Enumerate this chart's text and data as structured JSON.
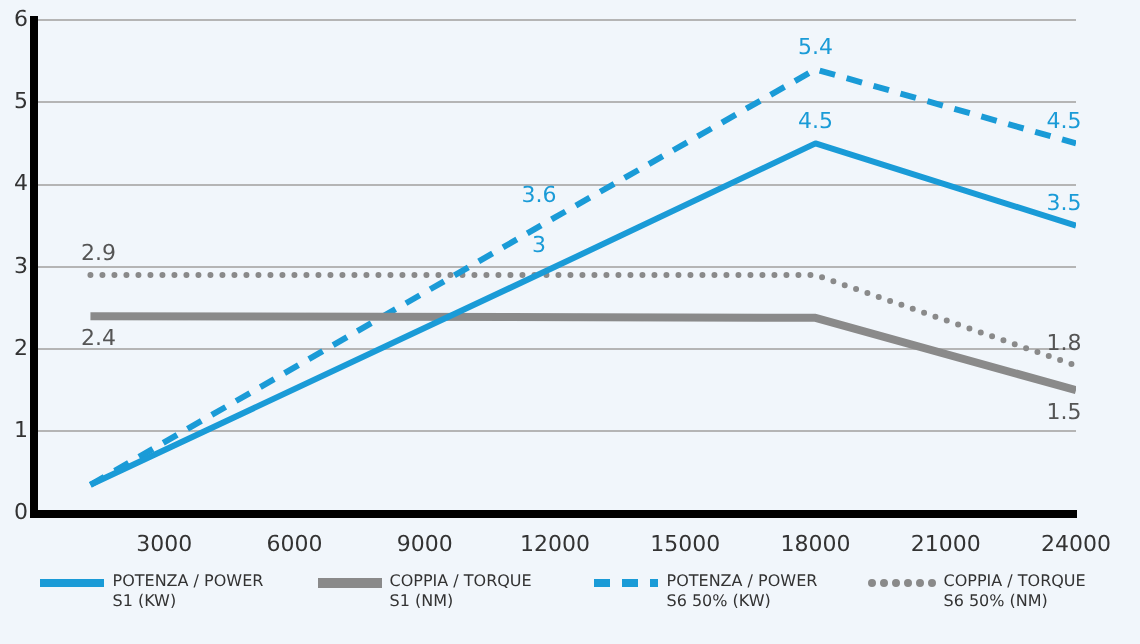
{
  "chart_data": {
    "type": "line",
    "xlim": [
      0,
      24000
    ],
    "xticks": [
      3000,
      6000,
      9000,
      12000,
      15000,
      18000,
      21000,
      24000
    ],
    "ylim": [
      0,
      6
    ],
    "yticks": [
      0,
      1,
      2,
      3,
      4,
      5,
      6
    ],
    "grid": "y",
    "legend": "bottom",
    "marker": "none",
    "series": [
      {
        "name": "POTENZA / POWER S1 (KW)",
        "color": "#1a9bd7",
        "line_style": "solid",
        "x": [
          1300,
          12000,
          18000,
          24000
        ],
        "values": [
          0.35,
          3,
          4.5,
          3.5
        ],
        "value_labels": [
          null,
          "3",
          "4.5",
          "3.5"
        ]
      },
      {
        "name": "COPPIA / TORQUE S1 (NM)",
        "color": "#8a8a8a",
        "line_style": "solid",
        "x": [
          1300,
          18000,
          24000
        ],
        "values": [
          2.4,
          2.38,
          1.5
        ],
        "value_labels": [
          "2.4",
          null,
          "1.5"
        ]
      },
      {
        "name": "POTENZA / POWER S6 50% (KW)",
        "color": "#1a9bd7",
        "line_style": "dashed",
        "x": [
          1300,
          12000,
          18000,
          24000
        ],
        "values": [
          0.35,
          3.6,
          5.4,
          4.5
        ],
        "value_labels": [
          null,
          "3.6",
          "5.4",
          "4.5"
        ]
      },
      {
        "name": "COPPIA / TORQUE S6 50% (NM)",
        "color": "#8a8a8a",
        "line_style": "dotted",
        "x": [
          1300,
          18000,
          24000
        ],
        "values": [
          2.9,
          2.9,
          1.8
        ],
        "value_labels": [
          "2.9",
          null,
          "1.8"
        ]
      }
    ]
  }
}
